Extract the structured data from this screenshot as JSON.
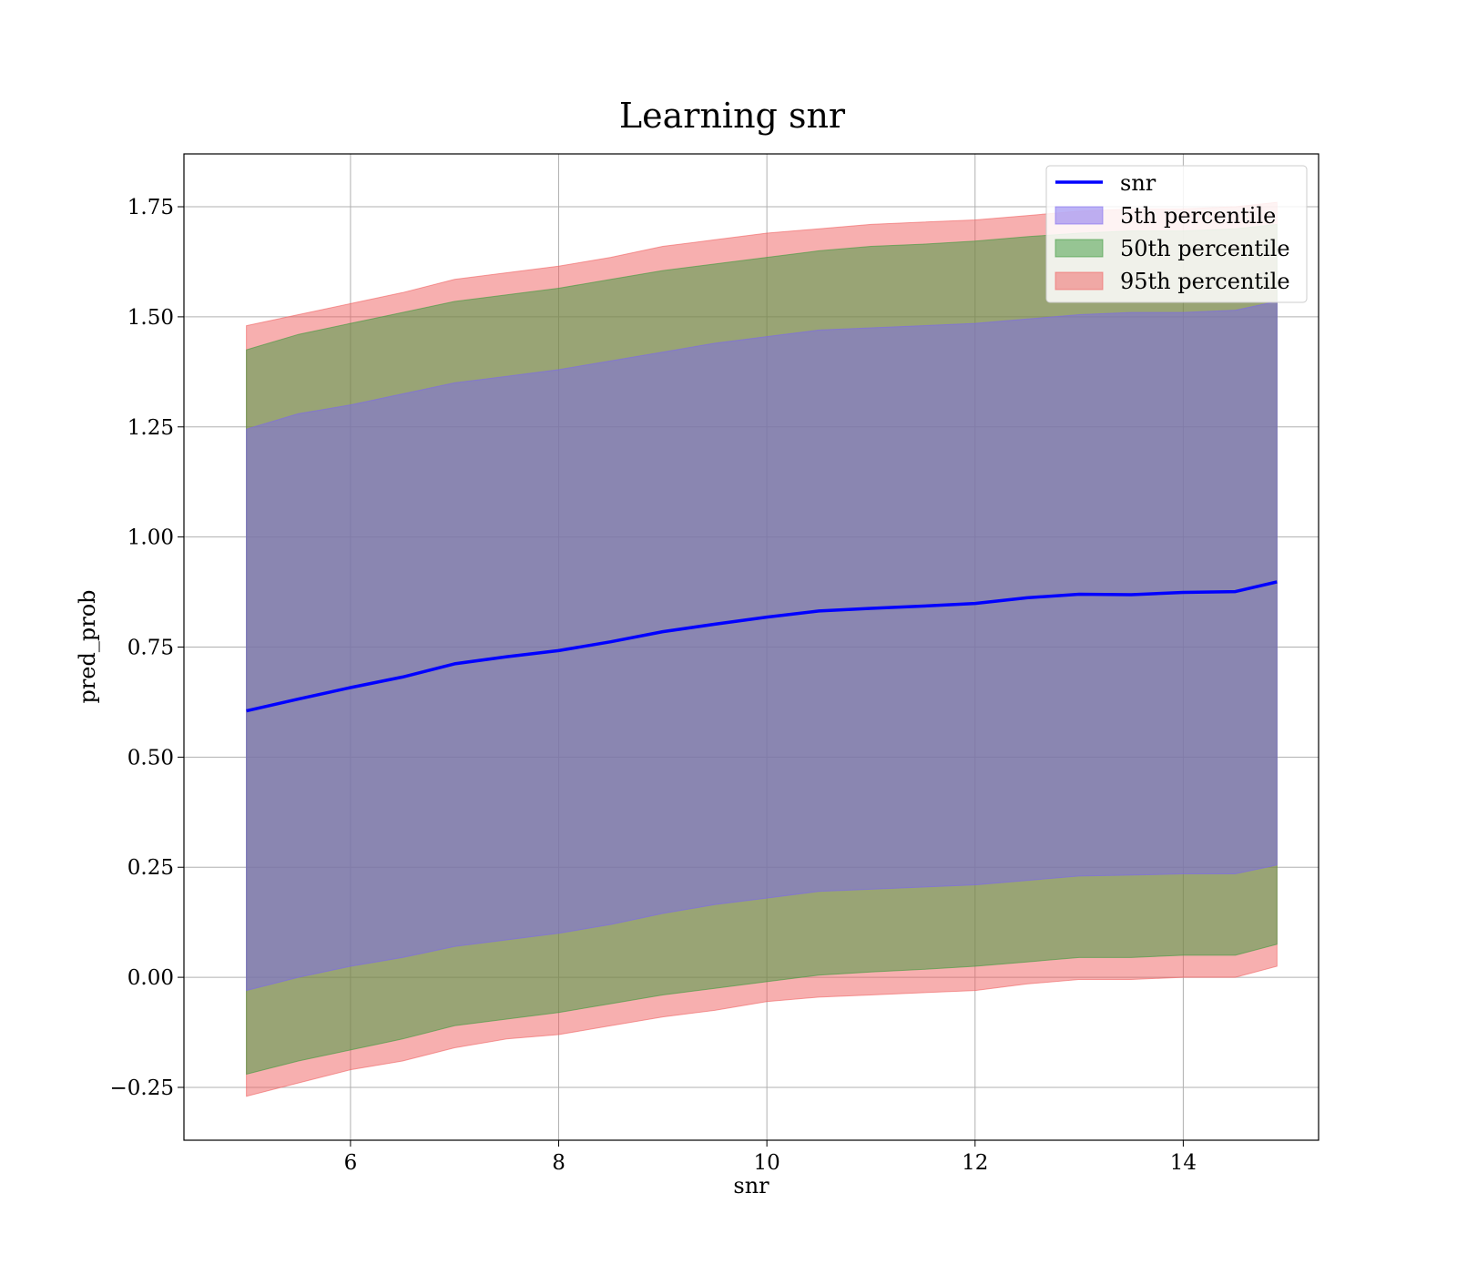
{
  "chart_data": {
    "type": "area",
    "title": "Learning snr",
    "xlabel": "snr",
    "ylabel": "pred_prob",
    "xlim": [
      4.4,
      15.3
    ],
    "ylim": [
      -0.37,
      1.87
    ],
    "xticks": [
      6,
      8,
      10,
      12,
      14
    ],
    "xtick_labels": [
      "6",
      "8",
      "10",
      "12",
      "14"
    ],
    "yticks": [
      -0.25,
      0,
      0.25,
      0.5,
      0.75,
      1.0,
      1.25,
      1.5,
      1.75
    ],
    "ytick_labels": [
      "−0.25",
      "0.00",
      "0.25",
      "0.50",
      "0.75",
      "1.00",
      "1.25",
      "1.50",
      "1.75"
    ],
    "grid": true,
    "legend_position": "top-right",
    "x": [
      5.0,
      5.5,
      6.0,
      6.5,
      7.0,
      7.5,
      8.0,
      8.5,
      9.0,
      9.5,
      10.0,
      10.5,
      11.0,
      11.5,
      12.0,
      12.5,
      13.0,
      13.5,
      14.0,
      14.5,
      14.9
    ],
    "line": {
      "name": "snr",
      "color": "#0000ff",
      "values": [
        0.605,
        0.632,
        0.658,
        0.682,
        0.712,
        0.728,
        0.742,
        0.762,
        0.785,
        0.802,
        0.818,
        0.832,
        0.838,
        0.843,
        0.849,
        0.862,
        0.87,
        0.869,
        0.874,
        0.876,
        0.898
      ]
    },
    "bands": [
      {
        "name": "5th percentile",
        "color": "#7b68ee",
        "lower": [
          -0.03,
          0.0,
          0.025,
          0.045,
          0.07,
          0.085,
          0.1,
          0.12,
          0.145,
          0.165,
          0.18,
          0.195,
          0.2,
          0.205,
          0.21,
          0.22,
          0.23,
          0.232,
          0.235,
          0.235,
          0.255
        ],
        "upper": [
          1.245,
          1.28,
          1.3,
          1.325,
          1.35,
          1.365,
          1.38,
          1.4,
          1.42,
          1.44,
          1.455,
          1.47,
          1.475,
          1.48,
          1.485,
          1.495,
          1.505,
          1.51,
          1.51,
          1.515,
          1.535
        ]
      },
      {
        "name": "50th percentile",
        "color": "#3c9a3c",
        "lower": [
          -0.22,
          -0.19,
          -0.165,
          -0.14,
          -0.11,
          -0.095,
          -0.08,
          -0.06,
          -0.04,
          -0.025,
          -0.01,
          0.005,
          0.012,
          0.018,
          0.025,
          0.035,
          0.045,
          0.045,
          0.05,
          0.05,
          0.075
        ],
        "upper": [
          1.425,
          1.46,
          1.485,
          1.51,
          1.535,
          1.55,
          1.565,
          1.585,
          1.605,
          1.62,
          1.635,
          1.65,
          1.66,
          1.665,
          1.672,
          1.682,
          1.69,
          1.695,
          1.695,
          1.7,
          1.71
        ]
      },
      {
        "name": "95th percentile",
        "color": "#f06060",
        "lower": [
          -0.27,
          -0.24,
          -0.21,
          -0.19,
          -0.16,
          -0.14,
          -0.13,
          -0.11,
          -0.09,
          -0.075,
          -0.055,
          -0.045,
          -0.04,
          -0.035,
          -0.03,
          -0.015,
          -0.005,
          -0.005,
          0.0,
          0.0,
          0.025
        ],
        "upper": [
          1.48,
          1.505,
          1.53,
          1.555,
          1.585,
          1.6,
          1.615,
          1.635,
          1.66,
          1.675,
          1.69,
          1.7,
          1.71,
          1.715,
          1.72,
          1.73,
          1.74,
          1.745,
          1.745,
          1.75,
          1.76
        ]
      }
    ]
  }
}
